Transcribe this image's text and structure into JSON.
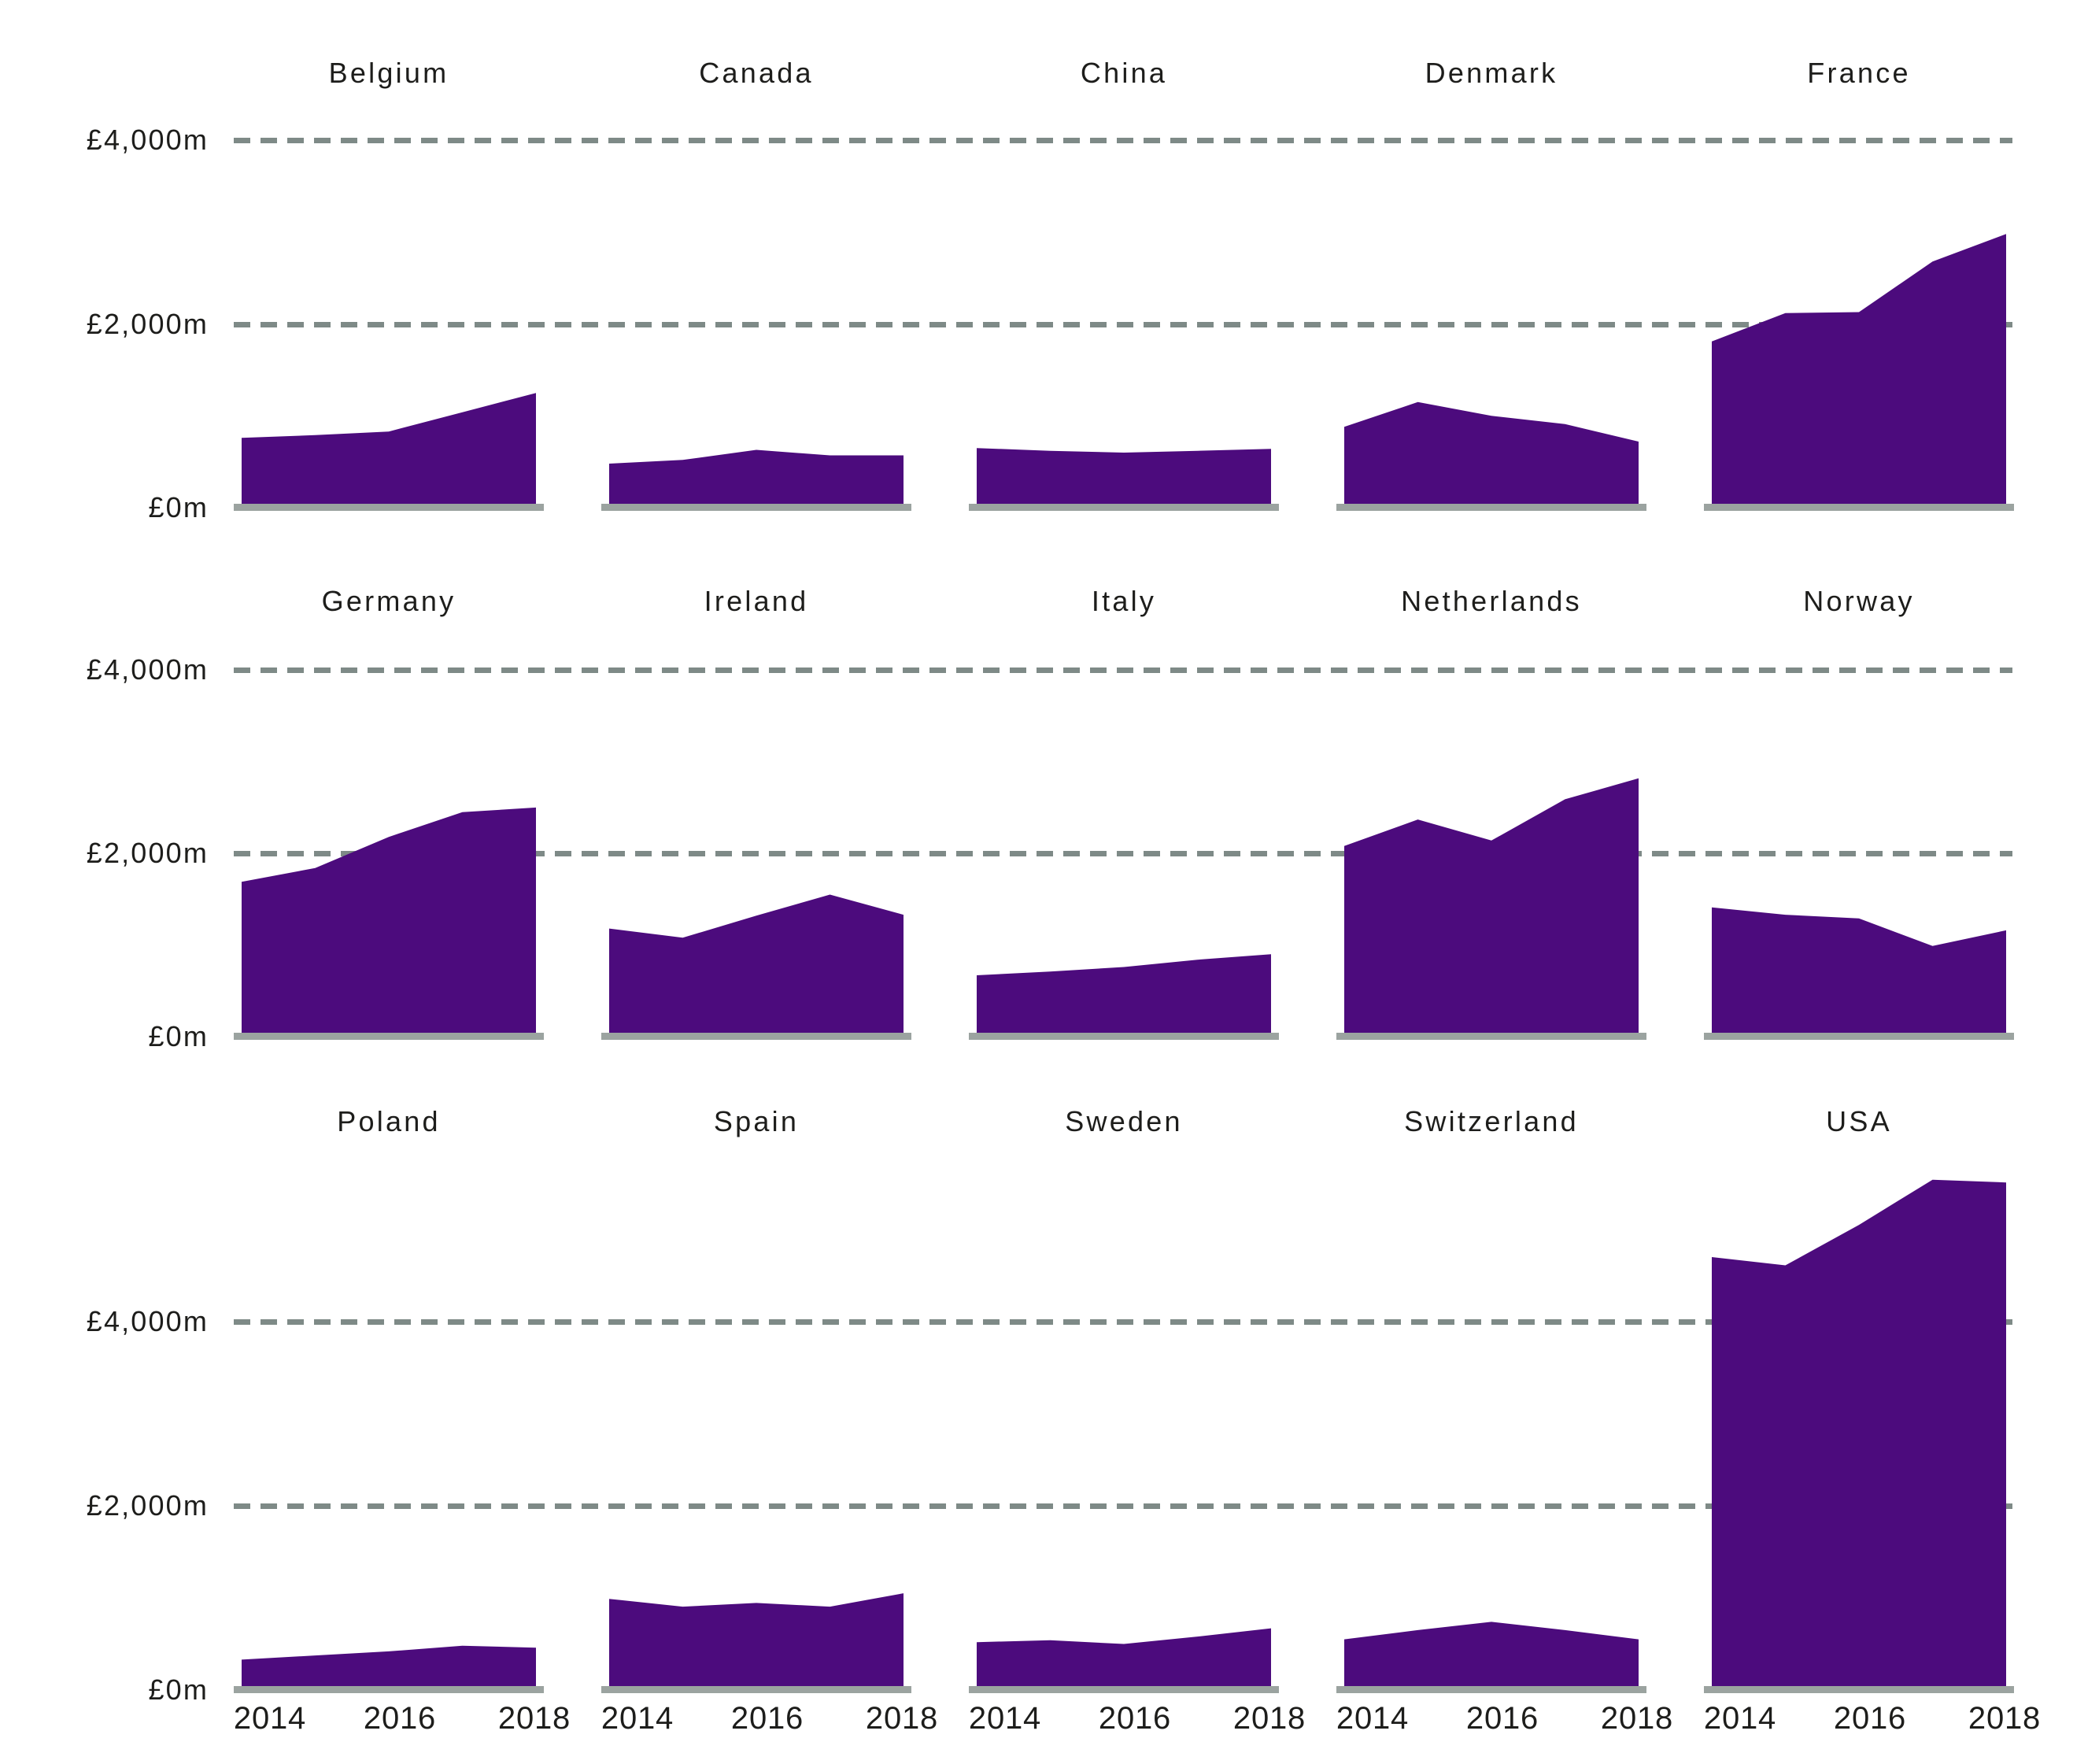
{
  "chart_data": {
    "type": "area",
    "title": "",
    "unit": "£m",
    "x": [
      2014,
      2015,
      2016,
      2017,
      2018
    ],
    "x_tick_labels": [
      "2014",
      "2016",
      "2018"
    ],
    "y_tick_labels": [
      "£0m",
      "£2,000m",
      "£4,000m"
    ],
    "y_gridlines": [
      2000,
      4000
    ],
    "grid_on": true,
    "legend": "none",
    "colors": {
      "area": "#4c0b7d",
      "gridline": "#7e8a87",
      "axis": "#9ba3a0",
      "text": "#1d1d1b",
      "background": "#ffffff"
    },
    "rows": [
      {
        "ylim": [
          0,
          4200
        ],
        "show_x_labels": false,
        "panels": [
          {
            "title": "Belgium",
            "values": [
              760,
              790,
              830,
              1040,
              1250
            ]
          },
          {
            "title": "Canada",
            "values": [
              480,
              520,
              630,
              570,
              570
            ]
          },
          {
            "title": "China",
            "values": [
              650,
              620,
              600,
              620,
              640
            ]
          },
          {
            "title": "Denmark",
            "values": [
              880,
              1150,
              1000,
              910,
              720
            ]
          },
          {
            "title": "France",
            "values": [
              1810,
              2120,
              2130,
              2680,
              2980
            ]
          }
        ]
      },
      {
        "ylim": [
          0,
          4200
        ],
        "show_x_labels": false,
        "panels": [
          {
            "title": "Germany",
            "values": [
              1690,
              1840,
              2180,
              2450,
              2500
            ]
          },
          {
            "title": "Ireland",
            "values": [
              1180,
              1080,
              1320,
              1550,
              1330
            ]
          },
          {
            "title": "Italy",
            "values": [
              670,
              710,
              760,
              840,
              900
            ]
          },
          {
            "title": "Netherlands",
            "values": [
              2080,
              2370,
              2140,
              2590,
              2820
            ]
          },
          {
            "title": "Norway",
            "values": [
              1410,
              1330,
              1290,
              990,
              1160
            ]
          }
        ]
      },
      {
        "ylim": [
          0,
          5700
        ],
        "show_x_labels": true,
        "panels": [
          {
            "title": "Poland",
            "values": [
              330,
              375,
              420,
              480,
              460
            ]
          },
          {
            "title": "Spain",
            "values": [
              990,
              905,
              945,
              905,
              1050
            ]
          },
          {
            "title": "Sweden",
            "values": [
              520,
              540,
              500,
              580,
              670
            ]
          },
          {
            "title": "Switzerland",
            "values": [
              550,
              650,
              740,
              650,
              550
            ]
          },
          {
            "title": "USA",
            "values": [
              4700,
              4610,
              5050,
              5540,
              5510
            ]
          }
        ]
      }
    ]
  },
  "layout_note": ""
}
